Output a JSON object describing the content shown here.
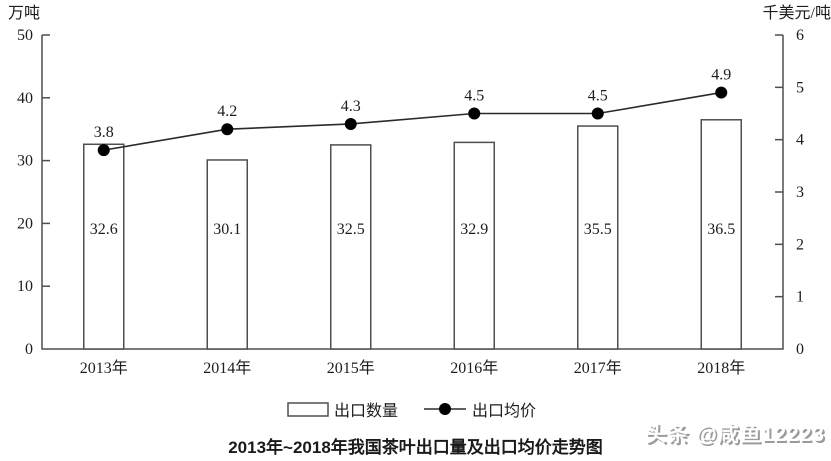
{
  "chart_data": {
    "type": "bar",
    "title": "2013年~2018年我国茶叶出口量及出口均价走势图",
    "categories": [
      "2013年",
      "2014年",
      "2015年",
      "2016年",
      "2017年",
      "2018年"
    ],
    "series": [
      {
        "name": "出口数量",
        "type": "bar",
        "axis": "left",
        "values": [
          32.6,
          30.1,
          32.5,
          32.9,
          35.5,
          36.5
        ]
      },
      {
        "name": "出口均价",
        "type": "line",
        "axis": "right",
        "values": [
          3.8,
          4.2,
          4.3,
          4.5,
          4.5,
          4.9
        ]
      }
    ],
    "left_axis": {
      "label": "万吨",
      "min": 0,
      "max": 50,
      "ticks": [
        0,
        10,
        20,
        30,
        40,
        50
      ]
    },
    "right_axis": {
      "label": "千美元/吨",
      "min": 0,
      "max": 6,
      "ticks": [
        0,
        1,
        2,
        3,
        4,
        5,
        6
      ]
    },
    "legend_position": "bottom",
    "grid": false
  },
  "watermark": {
    "text": "头条 @咸鱼12223"
  },
  "colors": {
    "axis": "#4f4f4f",
    "line": "#2b2b2b",
    "marker": "#000000",
    "bar_fill": "#ffffff",
    "text": "#1d1d1d"
  }
}
